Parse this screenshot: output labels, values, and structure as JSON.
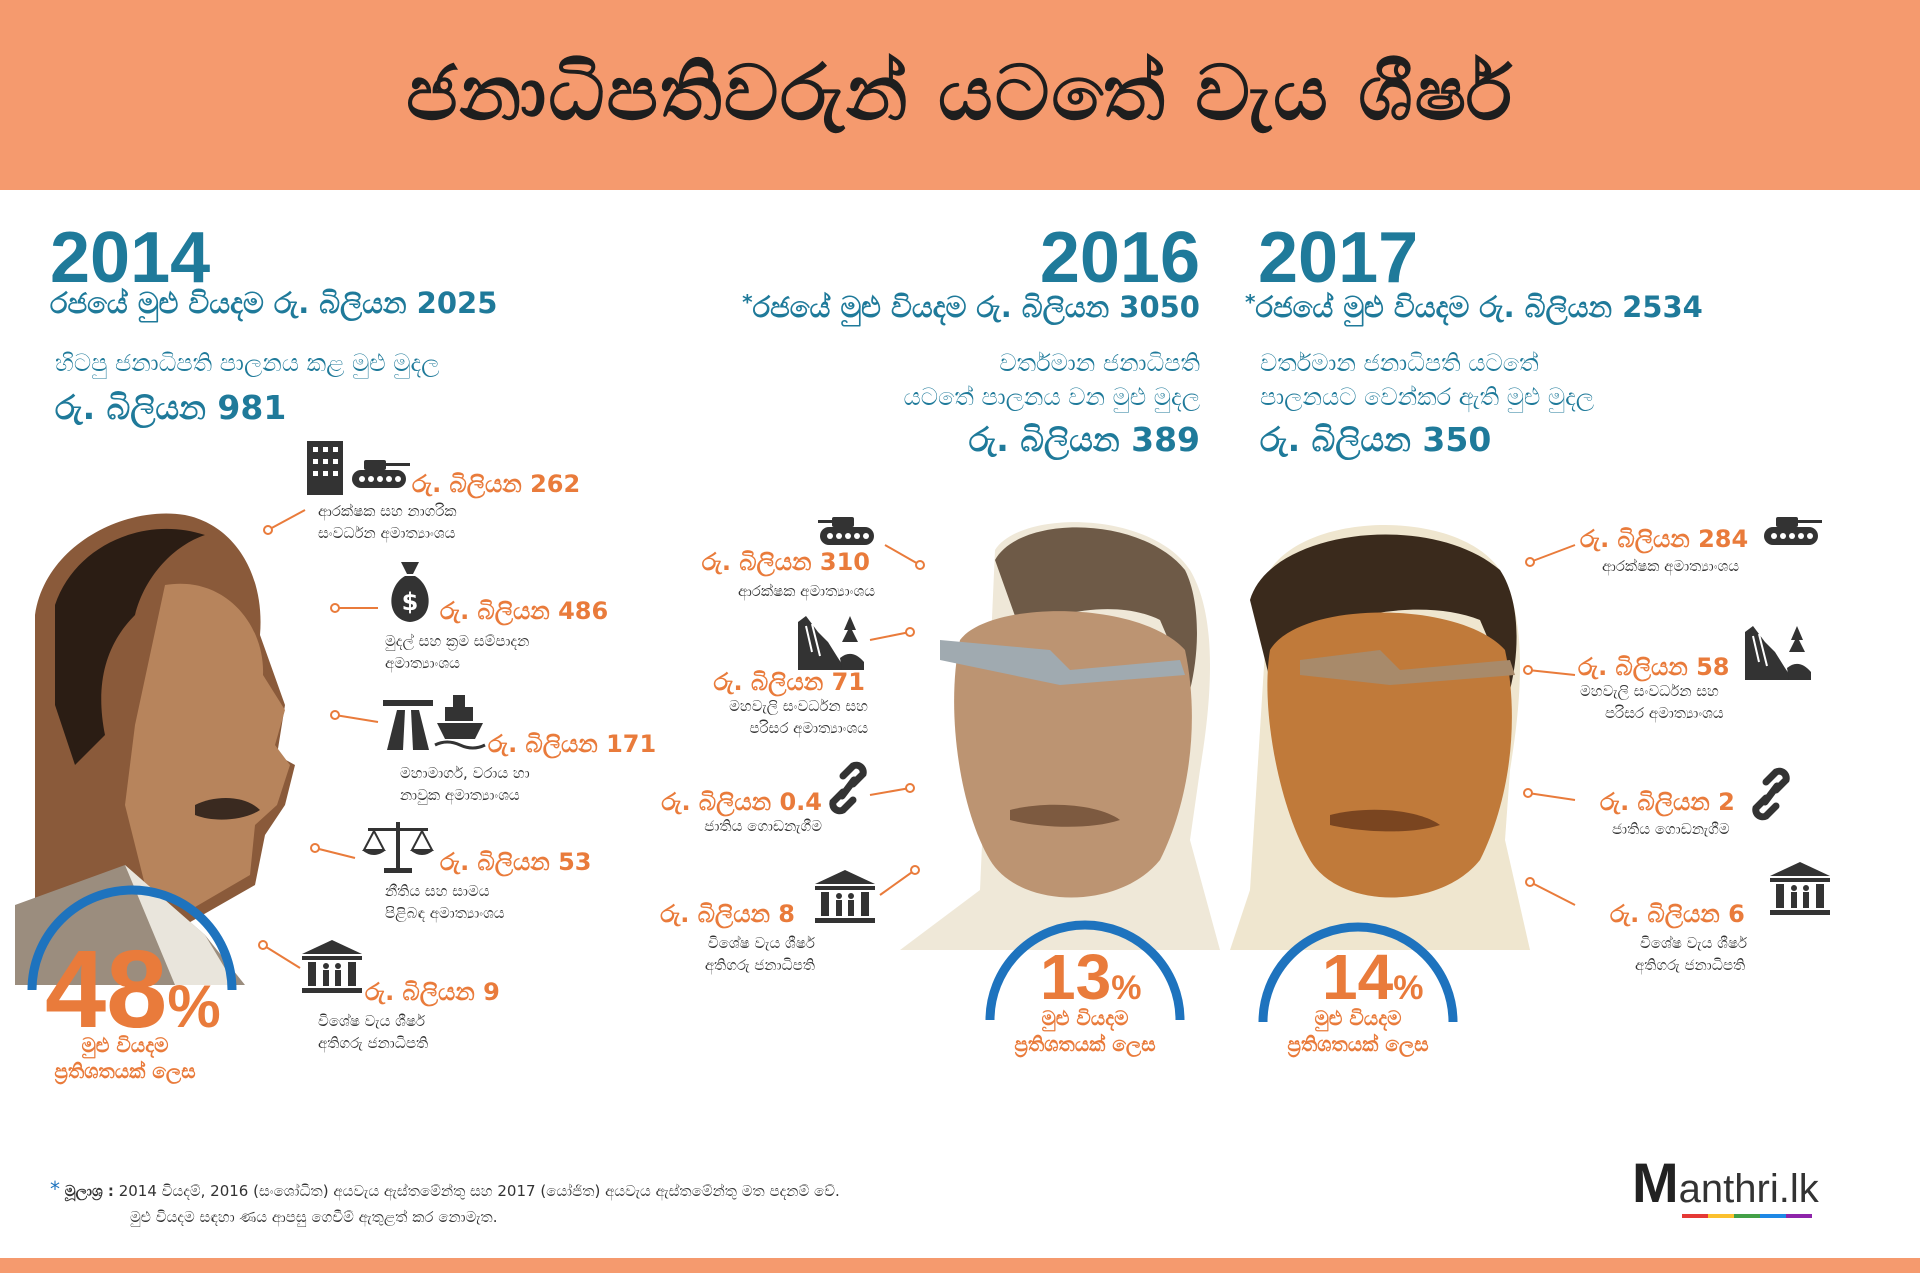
{
  "title": "ජනාධිපතිවරුන් යටතේ වැය ශීර්ෂ",
  "col2014": {
    "year": "2014",
    "total": "රජයේ මුළු වියදම රු. බිලියන 2025",
    "desc": "හිටපු ජනාධිපති පාලනය කළ මුළු මුදල",
    "amount": "රු. බිලියන 981",
    "items": [
      {
        "amount": "රු. බිලියන 262",
        "label1": "ආරක්ෂක සහ නාගරික",
        "label2": "සංවර්ධන අමාත්‍යාංශය",
        "icons": [
          "building-icon",
          "tank-icon"
        ]
      },
      {
        "amount": "රු. බිලියන 486",
        "label1": "මුදල් සහ ක්‍රම සම්පාදන",
        "label2": "අමාත්‍යාංශය",
        "icons": [
          "money-bag-icon"
        ]
      },
      {
        "amount": "රු. බිලියන 171",
        "label1": "මහාමාර්ග, වරාය හා",
        "label2": "නාවුක අමාත්‍යාංශය",
        "icons": [
          "highway-icon",
          "ship-icon"
        ]
      },
      {
        "amount": "රු. බිලියන 53",
        "label1": "නීතිය සහ සාමය",
        "label2": "පිළිබඳ අමාත්‍යාංශය",
        "icons": [
          "scales-icon"
        ]
      },
      {
        "amount": "රු. බිලියන 9",
        "label1": "විශේෂ වැය ශීර්ෂ",
        "label2": "අතිගරු ජනාධිපති",
        "icons": [
          "institution-icon"
        ]
      }
    ],
    "percent": "48",
    "percent_sign": "%",
    "percent_caption1": "මුළු වියදම",
    "percent_caption2": "ප්‍රතිශතයක් ලෙස"
  },
  "col2016": {
    "year": "2016",
    "total": "රජයේ මුළු වියදම රු. බිලියන 3050",
    "desc1": "වර්තමාන ජනාධිපති",
    "desc2": "යටතේ පාලනය වන මුළු මුදල",
    "amount": "රු. බිලියන 389",
    "items": [
      {
        "amount": "රු. බිලියන 310",
        "label1": "ආරක්ෂක අමාත්‍යාංශය",
        "label2": "",
        "icons": [
          "tank-icon"
        ]
      },
      {
        "amount": "රු. බිලියන 71",
        "label1": "මහවැලි සංවර්ධන සහ",
        "label2": "පරිසර අමාත්‍යාංශය",
        "icons": [
          "waterfall-icon"
        ]
      },
      {
        "amount": "රු. බිලියන 0.4",
        "label1": "ජාතිය ගොඩනැගීම",
        "label2": "",
        "icons": [
          "chain-link-icon"
        ]
      },
      {
        "amount": "රු. බිලියන 8",
        "label1": "විශේෂ වැය ශීර්ෂ",
        "label2": "අතිගරු ජනාධිපති",
        "icons": [
          "institution-icon"
        ]
      }
    ],
    "percent": "13",
    "percent_sign": "%",
    "percent_caption1": "මුළු වියදම",
    "percent_caption2": "ප්‍රතිශතයක් ලෙස"
  },
  "col2017": {
    "year": "2017",
    "total": "රජයේ මුළු වියදම රු. බිලියන 2534",
    "desc1": "වර්තමාන ජනාධිපති යටතේ",
    "desc2": "පාලනයට වෙන්කර ඇති මුළු මුදල",
    "amount": "රු. බිලියන 350",
    "items": [
      {
        "amount": "රු. බිලියන 284",
        "label1": "ආරක්ෂක අමාත්‍යාංශය",
        "label2": "",
        "icons": [
          "tank-icon"
        ]
      },
      {
        "amount": "රු. බිලියන 58",
        "label1": "මහවැලි සංවර්ධන සහ",
        "label2": "පරිසර අමාත්‍යාංශය",
        "icons": [
          "waterfall-icon"
        ]
      },
      {
        "amount": "රු. බිලියන 2",
        "label1": "ජාතිය ගොඩනැගීම",
        "label2": "",
        "icons": [
          "chain-link-icon"
        ]
      },
      {
        "amount": "රු. බිලියන 6",
        "label1": "විශේෂ වැය ශීර්ෂ",
        "label2": "අතිගරු ජනාධිපති",
        "icons": [
          "institution-icon"
        ]
      }
    ],
    "percent": "14",
    "percent_sign": "%",
    "percent_caption1": "මුළු වියදම",
    "percent_caption2": "ප්‍රතිශතයක් ලෙස"
  },
  "asterisk": "*",
  "footnote": {
    "label": "මූලාශ්‍ර :",
    "line1": "2014 වියදම්, 2016 (සංශෝධිත) අයවැය ඇස්තමේන්තු සහ 2017 (යෝජිත) අයවැය ඇස්තමේන්තු මත පදනම් වේ.",
    "line2": "මුළු වියදම සඳහා ණය ආපසු ගෙවීම් ඇතුළත් කර නොමැත."
  },
  "logo": {
    "mark": "M",
    "text": "anthri.lk"
  },
  "colors": {
    "header": "#f59a6e",
    "teal": "#1f7a9a",
    "orange": "#e97b3b",
    "arc": "#1e73be"
  }
}
